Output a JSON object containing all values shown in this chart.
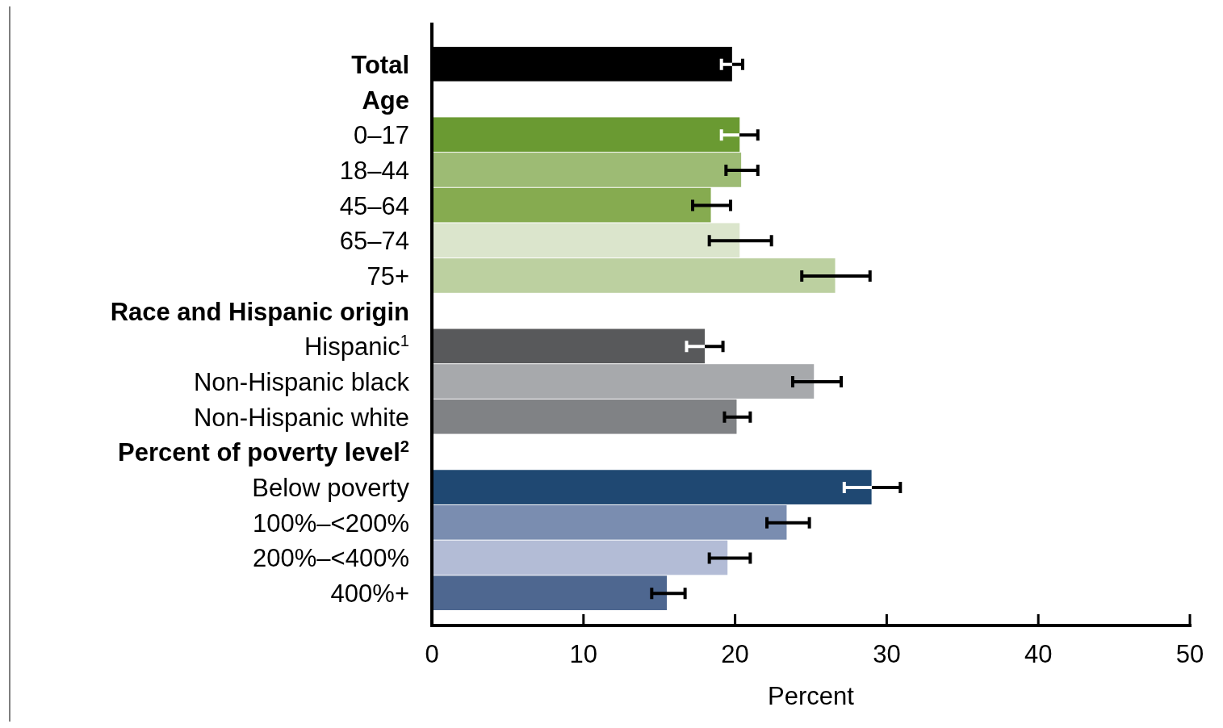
{
  "chart_data": {
    "type": "bar",
    "orientation": "horizontal",
    "xlabel": "Percent",
    "categories": [
      "Total",
      "Age",
      "0–17",
      "18–44",
      "45–64",
      "65–74",
      "75+",
      "Race and Hispanic origin",
      "Hispanic$^{1}$",
      "Non-Hispanic black",
      "Non-Hispanic white",
      "Percent of poverty level$^{2}$",
      "Below poverty",
      "100%–<200%",
      "200%–<400%",
      "400%+"
    ],
    "values": [
      19.8,
      null,
      20.3,
      20.4,
      18.4,
      20.3,
      26.6,
      null,
      18.0,
      25.2,
      20.1,
      null,
      29.0,
      23.4,
      19.5,
      15.5
    ],
    "errors": [
      [
        19.1,
        20.5
      ],
      null,
      [
        19.1,
        21.5
      ],
      [
        19.4,
        21.5
      ],
      [
        17.2,
        19.7
      ],
      [
        18.3,
        22.4
      ],
      [
        24.4,
        28.9
      ],
      null,
      [
        16.8,
        19.2
      ],
      [
        23.8,
        27.0
      ],
      [
        19.3,
        21.0
      ],
      null,
      [
        27.2,
        30.9
      ],
      [
        22.1,
        24.9
      ],
      [
        18.3,
        21.0
      ],
      [
        14.5,
        16.7
      ]
    ],
    "colors": [
      "#000000",
      null,
      "#6a9a32",
      "#9dbb74",
      "#86ab50",
      "#dbe5cc",
      "#bcd0a0",
      null,
      "#58595b",
      "#a7a9ac",
      "#808285",
      null,
      "#1f4872",
      "#7a8db0",
      "#b3bcd6",
      "#4e6790"
    ],
    "xlim": [
      0,
      50
    ],
    "xticks": [
      0,
      10,
      20,
      30,
      40,
      50
    ],
    "grid": false
  }
}
